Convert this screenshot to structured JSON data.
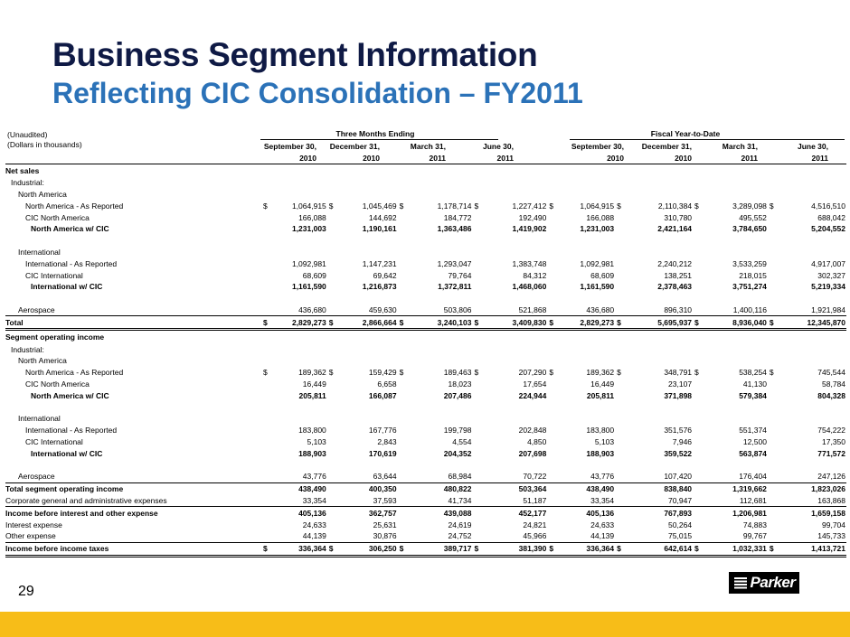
{
  "title": "Business Segment Information",
  "subtitle": "Reflecting CIC Consolidation – FY2011",
  "unaudited": "(Unaudited)",
  "units": "(Dollars in thousands)",
  "groups": {
    "three_months": "Three Months Ending",
    "ytd": "Fiscal Year-to-Date"
  },
  "columns": [
    {
      "l1": "September 30,",
      "l2": "2010"
    },
    {
      "l1": "December 31,",
      "l2": "2010"
    },
    {
      "l1": "March 31,",
      "l2": "2011"
    },
    {
      "l1": "June 30,",
      "l2": "2011"
    },
    {
      "l1": "September 30,",
      "l2": "2010"
    },
    {
      "l1": "December 31,",
      "l2": "2010"
    },
    {
      "l1": "March 31,",
      "l2": "2011"
    },
    {
      "l1": "June 30,",
      "l2": "2011"
    }
  ],
  "rows": [
    {
      "label": "Net sales",
      "indent": 0,
      "bold": true,
      "values": []
    },
    {
      "label": "Industrial:",
      "indent": 1,
      "values": []
    },
    {
      "label": "North America",
      "indent": 2,
      "values": []
    },
    {
      "label": "North America - As Reported",
      "indent": 3,
      "dollar": true,
      "values": [
        "1,064,915",
        "1,045,469",
        "1,178,714",
        "1,227,412",
        "1,064,915",
        "2,110,384",
        "3,289,098",
        "4,516,510"
      ]
    },
    {
      "label": "CIC North America",
      "indent": 3,
      "values": [
        "166,088",
        "144,692",
        "184,772",
        "192,490",
        "166,088",
        "310,780",
        "495,552",
        "688,042"
      ]
    },
    {
      "label": "North America w/ CIC",
      "indent": 4,
      "bold": true,
      "values": [
        "1,231,003",
        "1,190,161",
        "1,363,486",
        "1,419,902",
        "1,231,003",
        "2,421,164",
        "3,784,650",
        "5,204,552"
      ]
    },
    {
      "label": "",
      "indent": 0,
      "values": []
    },
    {
      "label": "International",
      "indent": 2,
      "values": []
    },
    {
      "label": "International - As Reported",
      "indent": 3,
      "values": [
        "1,092,981",
        "1,147,231",
        "1,293,047",
        "1,383,748",
        "1,092,981",
        "2,240,212",
        "3,533,259",
        "4,917,007"
      ]
    },
    {
      "label": "CIC International",
      "indent": 3,
      "values": [
        "68,609",
        "69,642",
        "79,764",
        "84,312",
        "68,609",
        "138,251",
        "218,015",
        "302,327"
      ]
    },
    {
      "label": "International w/ CIC",
      "indent": 4,
      "bold": true,
      "values": [
        "1,161,590",
        "1,216,873",
        "1,372,811",
        "1,468,060",
        "1,161,590",
        "2,378,463",
        "3,751,274",
        "5,219,334"
      ]
    },
    {
      "label": "",
      "indent": 0,
      "values": []
    },
    {
      "label": "Aerospace",
      "indent": 2,
      "values": [
        "436,680",
        "459,630",
        "503,806",
        "521,868",
        "436,680",
        "896,310",
        "1,400,116",
        "1,921,984"
      ]
    },
    {
      "label": "Total",
      "indent": 0,
      "bold": true,
      "dollar": true,
      "rule": true,
      "dbl": true,
      "values": [
        "2,829,273",
        "2,866,664",
        "3,240,103",
        "3,409,830",
        "2,829,273",
        "5,695,937",
        "8,936,040",
        "12,345,870"
      ]
    },
    {
      "label": "Segment operating income",
      "indent": 0,
      "bold": true,
      "tall": true,
      "values": []
    },
    {
      "label": "Industrial:",
      "indent": 1,
      "values": []
    },
    {
      "label": "North America",
      "indent": 2,
      "values": []
    },
    {
      "label": "North America - As Reported",
      "indent": 3,
      "dollar": true,
      "values": [
        "189,362",
        "159,429",
        "189,463",
        "207,290",
        "189,362",
        "348,791",
        "538,254",
        "745,544"
      ]
    },
    {
      "label": "CIC North America",
      "indent": 3,
      "values": [
        "16,449",
        "6,658",
        "18,023",
        "17,654",
        "16,449",
        "23,107",
        "41,130",
        "58,784"
      ]
    },
    {
      "label": "North America w/ CIC",
      "indent": 4,
      "bold": true,
      "values": [
        "205,811",
        "166,087",
        "207,486",
        "224,944",
        "205,811",
        "371,898",
        "579,384",
        "804,328"
      ]
    },
    {
      "label": "",
      "indent": 0,
      "values": []
    },
    {
      "label": "International",
      "indent": 2,
      "values": []
    },
    {
      "label": "International - As Reported",
      "indent": 3,
      "values": [
        "183,800",
        "167,776",
        "199,798",
        "202,848",
        "183,800",
        "351,576",
        "551,374",
        "754,222"
      ]
    },
    {
      "label": "CIC International",
      "indent": 3,
      "values": [
        "5,103",
        "2,843",
        "4,554",
        "4,850",
        "5,103",
        "7,946",
        "12,500",
        "17,350"
      ]
    },
    {
      "label": "International w/ CIC",
      "indent": 4,
      "bold": true,
      "values": [
        "188,903",
        "170,619",
        "204,352",
        "207,698",
        "188,903",
        "359,522",
        "563,874",
        "771,572"
      ]
    },
    {
      "label": "",
      "indent": 0,
      "values": []
    },
    {
      "label": "Aerospace",
      "indent": 2,
      "values": [
        "43,776",
        "63,644",
        "68,984",
        "70,722",
        "43,776",
        "107,420",
        "176,404",
        "247,126"
      ]
    },
    {
      "label": "Total segment operating income",
      "indent": 0,
      "bold": true,
      "rule": true,
      "values": [
        "438,490",
        "400,350",
        "480,822",
        "503,364",
        "438,490",
        "838,840",
        "1,319,662",
        "1,823,026"
      ]
    },
    {
      "label": "Corporate general and administrative expenses",
      "indent": 0,
      "values": [
        "33,354",
        "37,593",
        "41,734",
        "51,187",
        "33,354",
        "70,947",
        "112,681",
        "163,868"
      ]
    },
    {
      "label": "Income before interest and other expense",
      "indent": 0,
      "bold": true,
      "rule": true,
      "values": [
        "405,136",
        "362,757",
        "439,088",
        "452,177",
        "405,136",
        "767,893",
        "1,206,981",
        "1,659,158"
      ]
    },
    {
      "label": "Interest expense",
      "indent": 0,
      "values": [
        "24,633",
        "25,631",
        "24,619",
        "24,821",
        "24,633",
        "50,264",
        "74,883",
        "99,704"
      ]
    },
    {
      "label": "Other expense",
      "indent": 0,
      "values": [
        "44,139",
        "30,876",
        "24,752",
        "45,966",
        "44,139",
        "75,015",
        "99,767",
        "145,733"
      ]
    },
    {
      "label": "Income before income taxes",
      "indent": 0,
      "bold": true,
      "dollar": true,
      "rule": true,
      "dbl": true,
      "values": [
        "336,364",
        "306,250",
        "389,717",
        "381,390",
        "336,364",
        "642,614",
        "1,032,331",
        "1,413,721"
      ]
    }
  ],
  "page_number": "29",
  "logo_text": "Parker",
  "colors": {
    "title": "#0f1a45",
    "subtitle": "#2b72b8",
    "bar": "#f7bd18"
  }
}
